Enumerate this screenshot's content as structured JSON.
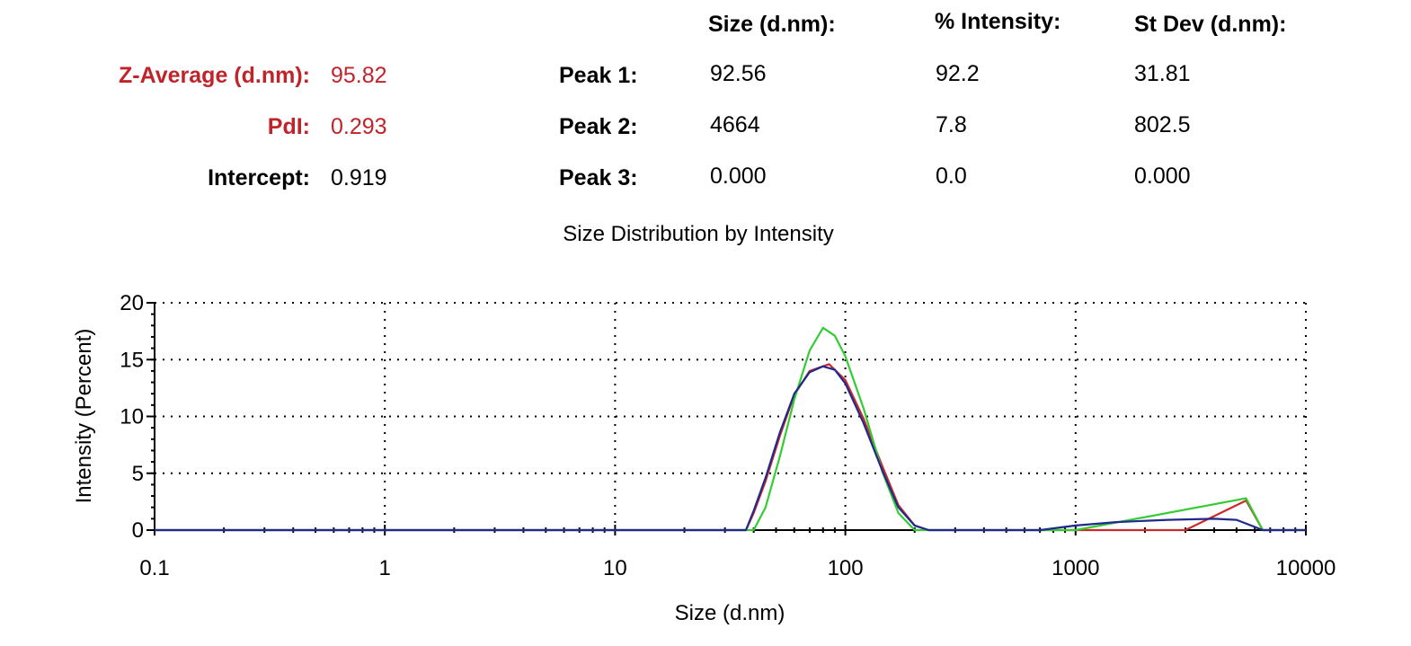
{
  "summary": {
    "z_average": {
      "label": "Z-Average (d.nm):",
      "value": "95.82"
    },
    "pdi": {
      "label": "PdI:",
      "value": "0.293"
    },
    "intercept": {
      "label": "Intercept:",
      "value": "0.919"
    }
  },
  "peaks_table": {
    "headers": [
      "Size (d.nm):",
      "% Intensity:",
      "St Dev (d.nm):"
    ],
    "rows": [
      {
        "label": "Peak 1:",
        "size": "92.56",
        "intensity": "92.2",
        "stdev": "31.81"
      },
      {
        "label": "Peak 2:",
        "size": "4664",
        "intensity": "7.8",
        "stdev": "802.5"
      },
      {
        "label": "Peak 3:",
        "size": "0.000",
        "intensity": "0.0",
        "stdev": "0.000"
      }
    ]
  },
  "colors": {
    "red_text": "#c0242b",
    "series_red": "#cc2a2a",
    "series_green": "#33cc33",
    "series_blue": "#1f2a8c"
  },
  "chart_data": {
    "type": "line",
    "title": "Size Distribution by Intensity",
    "xlabel": "Size (d.nm)",
    "ylabel": "Intensity (Percent)",
    "xscale": "log",
    "xlim": [
      0.1,
      10000
    ],
    "ylim": [
      0,
      20
    ],
    "xticks": [
      "0.1",
      "1",
      "10",
      "100",
      "1000",
      "10000"
    ],
    "yticks": [
      "0",
      "5",
      "10",
      "15",
      "20"
    ],
    "grid": true,
    "series": [
      {
        "color": "#cc2a2a",
        "points": [
          [
            0.1,
            0
          ],
          [
            37,
            0
          ],
          [
            40,
            1.5
          ],
          [
            45,
            4.3
          ],
          [
            52,
            8.3
          ],
          [
            60,
            11.9
          ],
          [
            70,
            14.0
          ],
          [
            85,
            14.6
          ],
          [
            100,
            13.2
          ],
          [
            120,
            9.8
          ],
          [
            145,
            5.6
          ],
          [
            170,
            2.2
          ],
          [
            200,
            0.4
          ],
          [
            230,
            0
          ],
          [
            3000,
            0
          ],
          [
            5500,
            2.6
          ],
          [
            6500,
            0
          ],
          [
            10000,
            0
          ]
        ]
      },
      {
        "color": "#33cc33",
        "points": [
          [
            0.1,
            0
          ],
          [
            40,
            0
          ],
          [
            45,
            2.0
          ],
          [
            52,
            6.5
          ],
          [
            60,
            11.5
          ],
          [
            70,
            15.8
          ],
          [
            80,
            17.8
          ],
          [
            90,
            17.1
          ],
          [
            100,
            15.3
          ],
          [
            120,
            10.7
          ],
          [
            145,
            5.1
          ],
          [
            170,
            1.5
          ],
          [
            200,
            0
          ],
          [
            1000,
            0
          ],
          [
            5500,
            2.8
          ],
          [
            6500,
            0
          ],
          [
            10000,
            0
          ]
        ]
      },
      {
        "color": "#1f2a8c",
        "points": [
          [
            0.1,
            0
          ],
          [
            37,
            0
          ],
          [
            40,
            1.7
          ],
          [
            45,
            4.6
          ],
          [
            52,
            8.6
          ],
          [
            60,
            12.0
          ],
          [
            70,
            13.9
          ],
          [
            80,
            14.4
          ],
          [
            90,
            14.1
          ],
          [
            100,
            12.9
          ],
          [
            120,
            9.4
          ],
          [
            145,
            5.2
          ],
          [
            170,
            2.0
          ],
          [
            200,
            0.4
          ],
          [
            230,
            0
          ],
          [
            700,
            0
          ],
          [
            1000,
            0.4
          ],
          [
            1500,
            0.7
          ],
          [
            2500,
            0.9
          ],
          [
            4000,
            1.0
          ],
          [
            5000,
            0.9
          ],
          [
            6500,
            0
          ],
          [
            10000,
            0
          ]
        ]
      }
    ]
  }
}
